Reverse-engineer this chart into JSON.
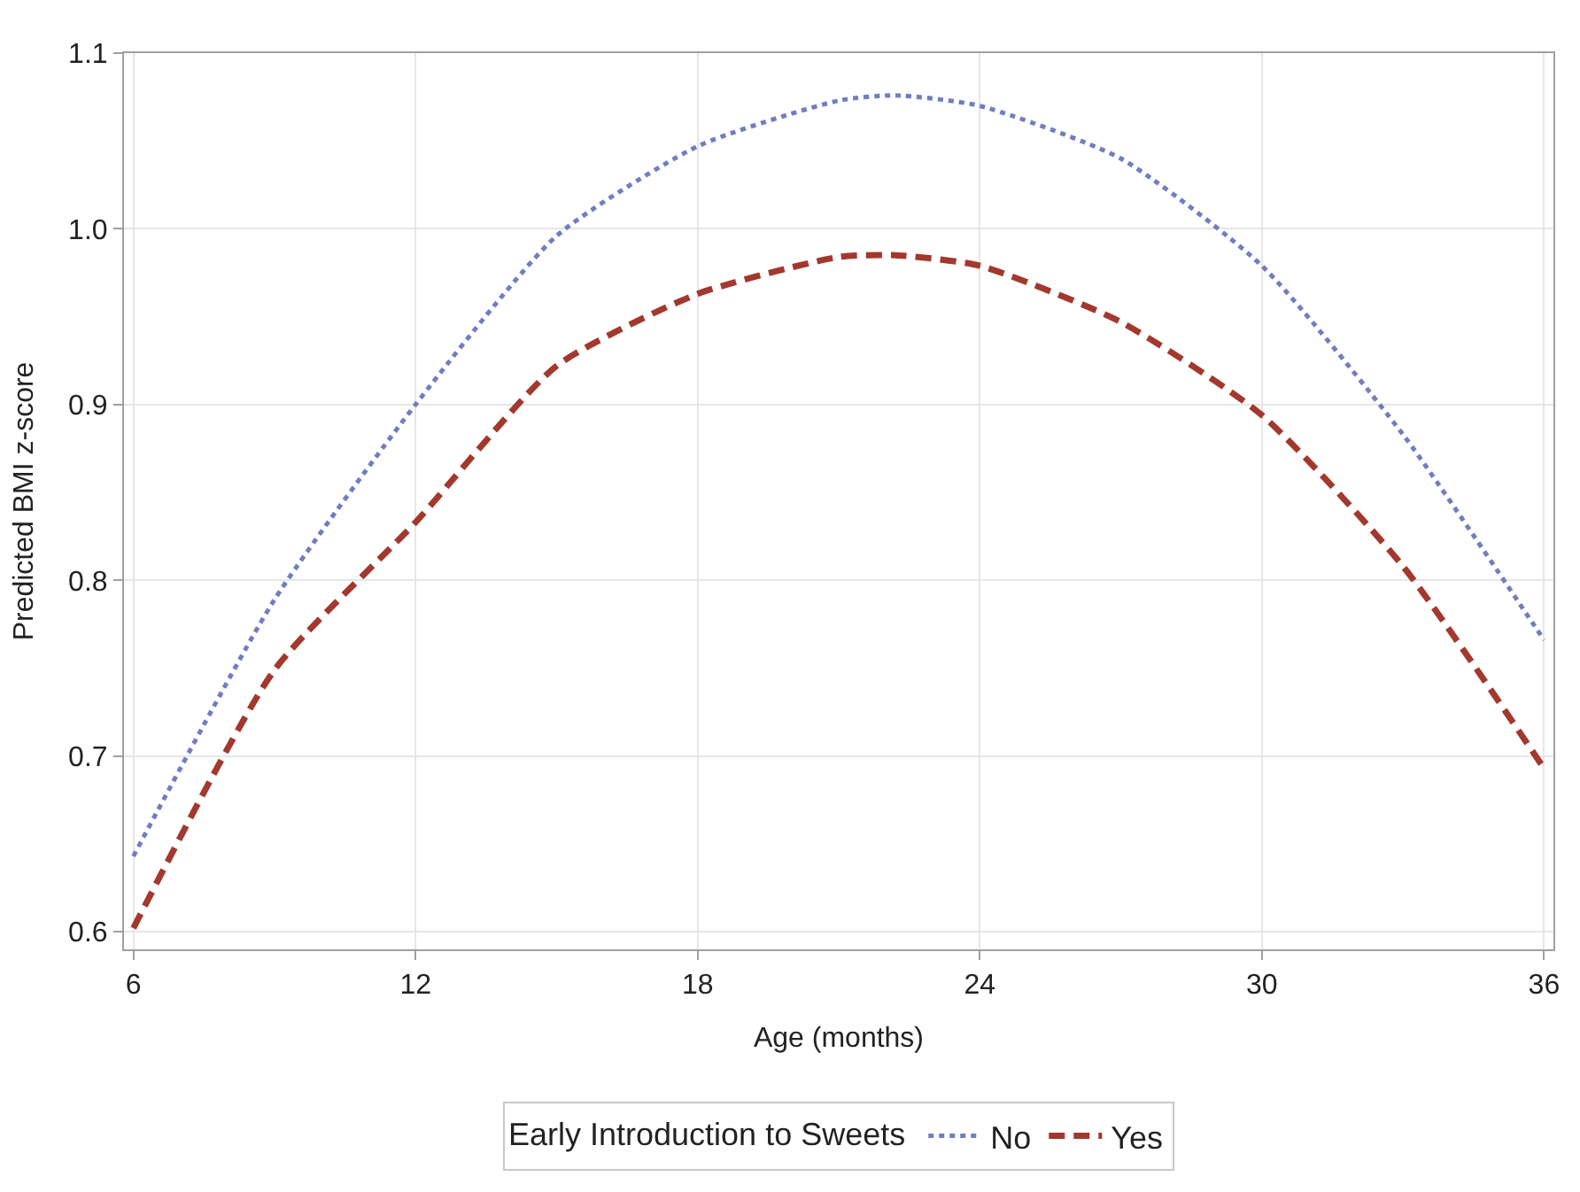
{
  "chart_data": {
    "type": "line",
    "xlabel": "Age (months)",
    "ylabel": "Predicted BMI z-score",
    "legend_title": "Early Introduction to Sweets",
    "legend": "bottom",
    "grid": true,
    "x": [
      6,
      9,
      12,
      15,
      18,
      21,
      22.2,
      24,
      27,
      30,
      33,
      36
    ],
    "xlim": [
      5.8,
      36.2
    ],
    "xticks": [
      6,
      12,
      18,
      24,
      30,
      36
    ],
    "ylim": [
      0.59,
      1.1
    ],
    "yticks": [
      0.6,
      0.7,
      0.8,
      0.9,
      {
        "value": 1,
        "label": "1.0"
      },
      1.1
    ],
    "series": [
      {
        "name": "No",
        "color": "#6f7ec0",
        "line_style": "dotted",
        "values": [
          0.643,
          0.789,
          0.9,
          0.996,
          1.047,
          1.073,
          1.076,
          1.07,
          1.04,
          0.979,
          0.883,
          0.766
        ]
      },
      {
        "name": "Yes",
        "color": "#a3382e",
        "line_style": "dashed",
        "values": [
          0.602,
          0.749,
          0.833,
          0.922,
          0.963,
          0.984,
          0.985,
          0.979,
          0.947,
          0.894,
          0.808,
          0.693
        ]
      }
    ]
  }
}
